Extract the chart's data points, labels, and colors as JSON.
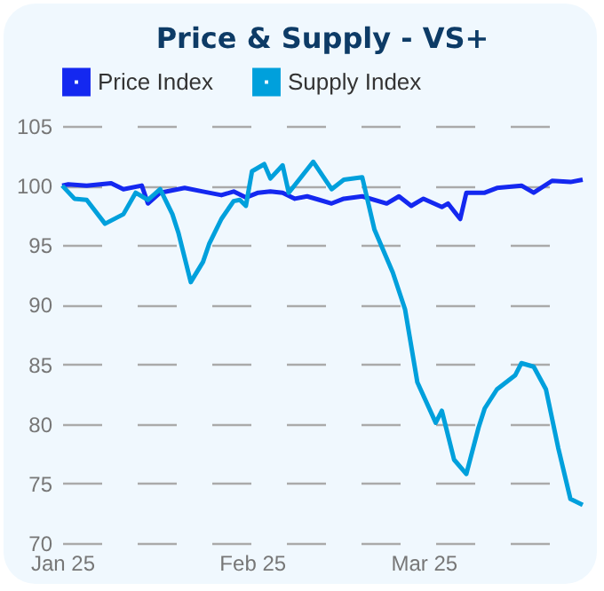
{
  "chart_data": {
    "type": "line",
    "title": "Price & Supply - VS+",
    "xlim": [
      "2025-01-01",
      "2025-03-27"
    ],
    "xticks": [
      {
        "value": "2025-01",
        "label": "Jan 25"
      },
      {
        "value": "2025-02",
        "label": "Feb 25"
      },
      {
        "value": "2025-03",
        "label": "Mar 25"
      }
    ],
    "ylim": [
      70,
      105
    ],
    "yticks": [
      70,
      75,
      80,
      85,
      90,
      95,
      100,
      105
    ],
    "grid": "y",
    "legend": "top",
    "marker": "none",
    "series": [
      {
        "name": "Price Index",
        "color": "#1428f0",
        "x": [
          "2025-01-01",
          "2025-01-02",
          "2025-01-05",
          "2025-01-09",
          "2025-01-11",
          "2025-01-14",
          "2025-01-15",
          "2025-01-17",
          "2025-01-21",
          "2025-01-24",
          "2025-01-27",
          "2025-01-29",
          "2025-01-31",
          "2025-02-02",
          "2025-02-04",
          "2025-02-06",
          "2025-02-08",
          "2025-02-10",
          "2025-02-12",
          "2025-02-14",
          "2025-02-16",
          "2025-02-19",
          "2025-02-23",
          "2025-02-25",
          "2025-02-27",
          "2025-03-01",
          "2025-03-04",
          "2025-03-05",
          "2025-03-07",
          "2025-03-08",
          "2025-03-11",
          "2025-03-13",
          "2025-03-17",
          "2025-03-19",
          "2025-03-22",
          "2025-03-25",
          "2025-03-27"
        ],
        "values": [
          100,
          100.1,
          100,
          100.2,
          99.7,
          100,
          98.5,
          99.4,
          99.8,
          99.5,
          99.2,
          99.5,
          99,
          99.4,
          99.5,
          99.4,
          98.9,
          99.1,
          98.8,
          98.5,
          98.9,
          99.1,
          98.5,
          99.1,
          98.3,
          98.9,
          98.2,
          98.5,
          97.2,
          99.4,
          99.4,
          99.8,
          100,
          99.4,
          100.4,
          100.3,
          100.5
        ]
      },
      {
        "name": "Supply Index",
        "color": "#00a0dc",
        "x": [
          "2025-01-01",
          "2025-01-03",
          "2025-01-05",
          "2025-01-08",
          "2025-01-11",
          "2025-01-13",
          "2025-01-15",
          "2025-01-17",
          "2025-01-19",
          "2025-01-20",
          "2025-01-22",
          "2025-01-24",
          "2025-01-25",
          "2025-01-27",
          "2025-01-29",
          "2025-01-30",
          "2025-01-31",
          "2025-02-01",
          "2025-02-03",
          "2025-02-04",
          "2025-02-06",
          "2025-02-07",
          "2025-02-09",
          "2025-02-11",
          "2025-02-14",
          "2025-02-16",
          "2025-02-19",
          "2025-02-21",
          "2025-02-24",
          "2025-02-26",
          "2025-02-28",
          "2025-03-03",
          "2025-03-04",
          "2025-03-06",
          "2025-03-08",
          "2025-03-10",
          "2025-03-11",
          "2025-03-13",
          "2025-03-16",
          "2025-03-17",
          "2025-03-19",
          "2025-03-21",
          "2025-03-23",
          "2025-03-25",
          "2025-03-27"
        ],
        "values": [
          100,
          98.9,
          98.8,
          96.8,
          97.6,
          99.4,
          98.8,
          99.7,
          97.6,
          96,
          91.9,
          93.6,
          95.1,
          97.2,
          98.7,
          98.8,
          98.3,
          101.2,
          101.8,
          100.6,
          101.7,
          99.4,
          100.7,
          102,
          99.7,
          100.5,
          100.7,
          96.3,
          92.7,
          89.6,
          83.5,
          80.1,
          81.1,
          77,
          75.8,
          79.7,
          81.3,
          82.9,
          84.1,
          85.1,
          84.8,
          82.9,
          78,
          73.7,
          73.2
        ]
      }
    ]
  }
}
